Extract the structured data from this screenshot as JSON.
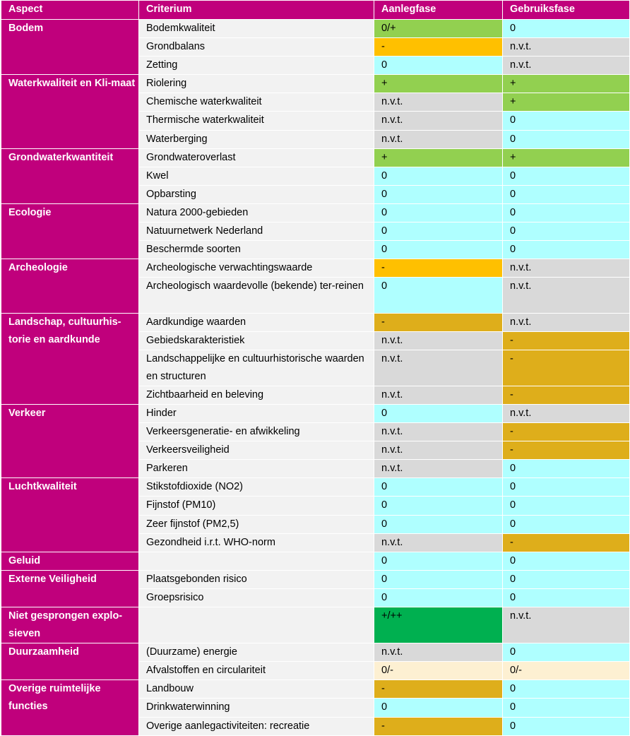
{
  "headers": [
    "Aspect",
    "Criterium",
    "Aanlegfase",
    "Gebruiksfase"
  ],
  "colors": {
    "header": "#c0007c",
    "criterium_bg": "#f2f2f2",
    "plus": "#92d050",
    "plusplus": "#00b050",
    "zero": "#afffff",
    "nvt": "#d9d9d9",
    "minus_orange": "#ffc000",
    "minus_gold": "#deae1b",
    "mixed": "#fdf0d2"
  },
  "groups": [
    {
      "aspect": "Bodem",
      "rows": [
        {
          "c": "Bodemkwaliteit",
          "a": "0/+",
          "ac": "plus",
          "g": "0",
          "gc": "zero"
        },
        {
          "c": "Grondbalans",
          "a": "-",
          "ac": "orange",
          "g": "n.v.t.",
          "gc": "nvt"
        },
        {
          "c": "Zetting",
          "a": "0",
          "ac": "zero",
          "g": "n.v.t.",
          "gc": "nvt"
        }
      ]
    },
    {
      "aspect": "Waterkwaliteit en Kli-maat",
      "rows": [
        {
          "c": "Riolering",
          "a": "+",
          "ac": "plus",
          "g": "+",
          "gc": "plus"
        },
        {
          "c": "Chemische waterkwaliteit",
          "a": "n.v.t.",
          "ac": "nvt",
          "g": "+",
          "gc": "plus"
        },
        {
          "c": "Thermische waterkwaliteit",
          "a": "n.v.t.",
          "ac": "nvt",
          "g": "0",
          "gc": "zero"
        },
        {
          "c": "Waterberging",
          "a": "n.v.t.",
          "ac": "nvt",
          "g": "0",
          "gc": "zero"
        }
      ]
    },
    {
      "aspect": "Grondwaterkwantiteit",
      "rows": [
        {
          "c": "Grondwateroverlast",
          "a": "+",
          "ac": "plus",
          "g": "+",
          "gc": "plus"
        },
        {
          "c": "Kwel",
          "a": "0",
          "ac": "zero",
          "g": "0",
          "gc": "zero"
        },
        {
          "c": "Opbarsting",
          "a": "0",
          "ac": "zero",
          "g": "0",
          "gc": "zero"
        }
      ]
    },
    {
      "aspect": "Ecologie",
      "rows": [
        {
          "c": "Natura 2000-gebieden",
          "a": "0",
          "ac": "zero",
          "g": "0",
          "gc": "zero"
        },
        {
          "c": "Natuurnetwerk Nederland",
          "a": "0",
          "ac": "zero",
          "g": "0",
          "gc": "zero"
        },
        {
          "c": "Beschermde soorten",
          "a": "0",
          "ac": "zero",
          "g": "0",
          "gc": "zero"
        }
      ]
    },
    {
      "aspect": "Archeologie",
      "rows": [
        {
          "c": "Archeologische verwachtingswaarde",
          "a": "-",
          "ac": "orange",
          "g": "n.v.t.",
          "gc": "nvt"
        },
        {
          "c": "Archeologisch waardevolle (bekende) ter-reinen",
          "a": "0",
          "ac": "zero",
          "g": "n.v.t.",
          "gc": "nvt",
          "h": 2
        }
      ]
    },
    {
      "aspect": "Landschap, cultuurhis-torie en aardkunde",
      "rows": [
        {
          "c": "Aardkundige waarden",
          "a": "-",
          "ac": "gold",
          "g": "n.v.t.",
          "gc": "nvt"
        },
        {
          "c": "Gebiedskarakteristiek",
          "a": "n.v.t.",
          "ac": "nvt",
          "g": "-",
          "gc": "gold"
        },
        {
          "c": "Landschappelijke en cultuurhistorische waarden en structuren",
          "a": "n.v.t.",
          "ac": "nvt",
          "g": "-",
          "gc": "gold",
          "h": 2
        },
        {
          "c": "Zichtbaarheid en beleving",
          "a": "n.v.t.",
          "ac": "nvt",
          "g": "-",
          "gc": "gold"
        }
      ]
    },
    {
      "aspect": "Verkeer",
      "rows": [
        {
          "c": "Hinder",
          "a": "0",
          "ac": "zero",
          "g": "n.v.t.",
          "gc": "nvt"
        },
        {
          "c": "Verkeersgeneratie- en afwikkeling",
          "a": "n.v.t.",
          "ac": "nvt",
          "g": "-",
          "gc": "gold"
        },
        {
          "c": "Verkeersveiligheid",
          "a": "n.v.t.",
          "ac": "nvt",
          "g": "-",
          "gc": "gold"
        },
        {
          "c": "Parkeren",
          "a": "n.v.t.",
          "ac": "nvt",
          "g": "0",
          "gc": "zero"
        }
      ]
    },
    {
      "aspect": "Luchtkwaliteit",
      "rows": [
        {
          "c": "Stikstofdioxide (NO2)",
          "a": "0",
          "ac": "zero",
          "g": "0",
          "gc": "zero"
        },
        {
          "c": "Fijnstof (PM10)",
          "a": "0",
          "ac": "zero",
          "g": "0",
          "gc": "zero"
        },
        {
          "c": "Zeer fijnstof (PM2,5)",
          "a": "0",
          "ac": "zero",
          "g": "0",
          "gc": "zero"
        },
        {
          "c": "Gezondheid i.r.t. WHO-norm",
          "a": "n.v.t.",
          "ac": "nvt",
          "g": "-",
          "gc": "gold"
        }
      ]
    },
    {
      "aspect": "Geluid",
      "rows": [
        {
          "c": "",
          "a": "0",
          "ac": "zero",
          "g": "0",
          "gc": "zero"
        }
      ]
    },
    {
      "aspect": "Externe Veiligheid",
      "rows": [
        {
          "c": "Plaatsgebonden risico",
          "a": "0",
          "ac": "zero",
          "g": "0",
          "gc": "zero"
        },
        {
          "c": "Groepsrisico",
          "a": "0",
          "ac": "zero",
          "g": "0",
          "gc": "zero"
        }
      ]
    },
    {
      "aspect": "Niet gesprongen explo-sieven",
      "rows": [
        {
          "c": "",
          "a": "+/++",
          "ac": "dplus",
          "g": "n.v.t.",
          "gc": "nvt",
          "h": 2
        }
      ]
    },
    {
      "aspect": "Duurzaamheid",
      "rows": [
        {
          "c": "(Duurzame) energie",
          "a": "n.v.t.",
          "ac": "nvt",
          "g": "0",
          "gc": "zero"
        },
        {
          "c": "Afvalstoffen en circulariteit",
          "a": "0/-",
          "ac": "cream",
          "g": "0/-",
          "gc": "cream"
        }
      ]
    },
    {
      "aspect": "Overige ruimtelijke functies",
      "rows": [
        {
          "c": "Landbouw",
          "a": "-",
          "ac": "gold",
          "g": "0",
          "gc": "zero"
        },
        {
          "c": "Drinkwaterwinning",
          "a": "0",
          "ac": "zero",
          "g": "0",
          "gc": "zero"
        },
        {
          "c": "Overige aanlegactiviteiten: recreatie",
          "a": "-",
          "ac": "gold",
          "g": "0",
          "gc": "zero"
        }
      ]
    }
  ]
}
